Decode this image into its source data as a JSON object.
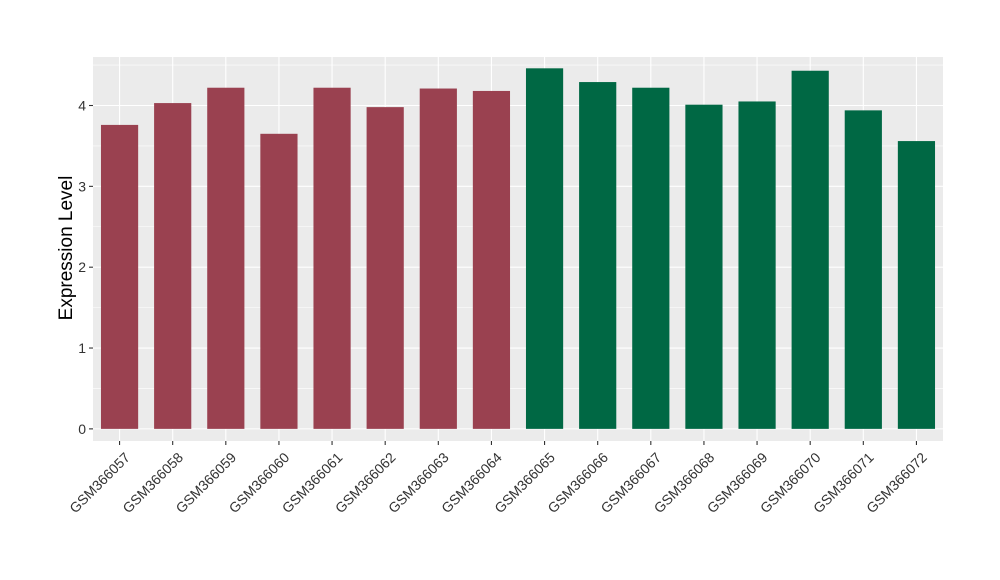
{
  "chart_data": {
    "type": "bar",
    "title": "",
    "xlabel": "",
    "ylabel": "Expression Level",
    "ylim": [
      -0.15,
      4.6
    ],
    "yticks": [
      0,
      1,
      2,
      3,
      4
    ],
    "grid": true,
    "legend": "none",
    "background": "#EBEBEB",
    "categories": [
      "GSM366057",
      "GSM366058",
      "GSM366059",
      "GSM366060",
      "GSM366061",
      "GSM366062",
      "GSM366063",
      "GSM366064",
      "GSM366065",
      "GSM366066",
      "GSM366067",
      "GSM366068",
      "GSM366069",
      "GSM366070",
      "GSM366071",
      "GSM366072"
    ],
    "values": [
      3.76,
      4.03,
      4.22,
      3.65,
      4.22,
      3.98,
      4.21,
      4.18,
      4.46,
      4.29,
      4.22,
      4.01,
      4.05,
      4.43,
      3.94,
      3.56
    ],
    "bar_colors": [
      "#9A4150",
      "#9A4150",
      "#9A4150",
      "#9A4150",
      "#9A4150",
      "#9A4150",
      "#9A4150",
      "#9A4150",
      "#006844",
      "#006844",
      "#006844",
      "#006844",
      "#006844",
      "#006844",
      "#006844",
      "#006844"
    ]
  }
}
